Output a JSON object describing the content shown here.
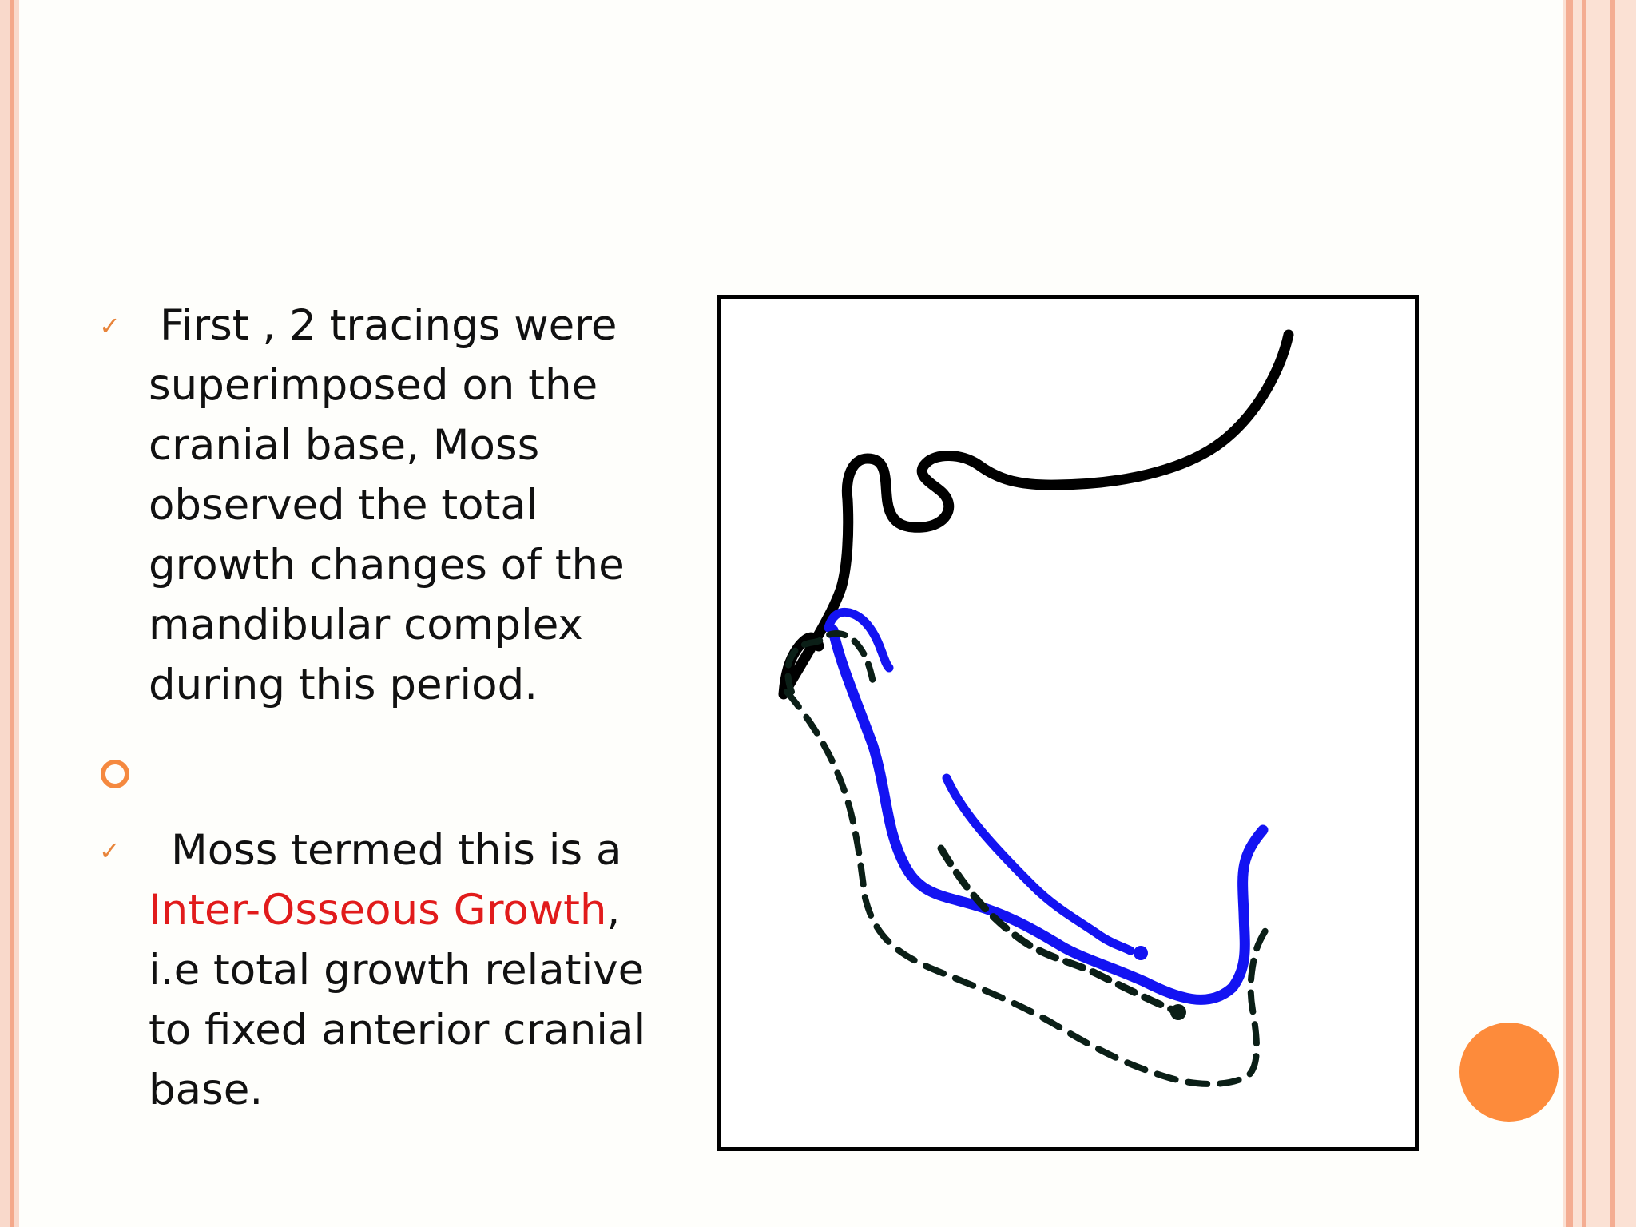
{
  "slide": {
    "bullets": [
      {
        "icon": "check-icon",
        "lines": [
          "First , 2 tracings were",
          "superimposed on the",
          "cranial base, Moss",
          "observed the total",
          "growth changes of the",
          "mandibular complex",
          "during this period."
        ]
      },
      {
        "icon": "ring-bullet-icon",
        "lines": []
      },
      {
        "icon": "check-icon",
        "line1": "Moss termed this is a",
        "highlight": "Inter-Osseous Growth",
        "after_highlight": ",",
        "lines_after": [
          "i.e total growth relative",
          "to fixed anterior cranial",
          "base."
        ]
      }
    ],
    "colors": {
      "check": "#e8843a",
      "ring": "#f5893f",
      "highlight": "#e11b1b",
      "tracing_blue": "#1313f2",
      "tracing_black": "#000000",
      "tracing_dashed": "#0b1f17",
      "accent_dot": "#fd8b3b",
      "stripe": "#f7c2ad"
    }
  }
}
